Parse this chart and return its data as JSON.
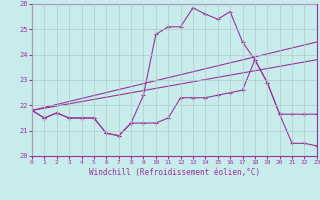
{
  "xlabel": "Windchill (Refroidissement éolien,°C)",
  "xlim": [
    0,
    23
  ],
  "ylim": [
    20,
    26
  ],
  "xticks": [
    0,
    1,
    2,
    3,
    4,
    5,
    6,
    7,
    8,
    9,
    10,
    11,
    12,
    13,
    14,
    15,
    16,
    17,
    18,
    19,
    20,
    21,
    22,
    23
  ],
  "yticks": [
    20,
    21,
    22,
    23,
    24,
    25,
    26
  ],
  "bg_color": "#c8ecec",
  "line_color": "#993399",
  "grid_color": "#b0cccc",
  "line1_x": [
    0,
    1,
    2,
    3,
    4,
    5,
    6,
    7,
    8,
    9,
    10,
    11,
    12,
    13,
    14,
    15,
    16,
    17,
    18,
    19,
    20,
    21,
    22,
    23
  ],
  "line1_y": [
    21.8,
    21.5,
    21.7,
    21.5,
    21.5,
    21.5,
    20.9,
    20.8,
    21.3,
    22.4,
    24.8,
    25.1,
    25.1,
    25.85,
    25.6,
    25.4,
    25.7,
    24.5,
    23.8,
    22.9,
    21.65,
    21.65,
    21.65,
    21.65
  ],
  "line2_x": [
    0,
    1,
    2,
    3,
    4,
    5,
    6,
    7,
    8,
    9,
    10,
    11,
    12,
    13,
    14,
    15,
    16,
    17,
    18,
    19,
    20,
    21,
    22,
    23
  ],
  "line2_y": [
    21.8,
    21.5,
    21.7,
    21.5,
    21.5,
    21.5,
    20.9,
    20.8,
    21.3,
    21.3,
    21.3,
    21.5,
    22.3,
    22.3,
    22.3,
    22.4,
    22.5,
    22.6,
    23.8,
    22.9,
    21.65,
    20.5,
    20.5,
    20.4
  ],
  "line3_x": [
    0,
    23
  ],
  "line3_y": [
    21.8,
    24.5
  ],
  "line4_x": [
    0,
    23
  ],
  "line4_y": [
    21.8,
    23.8
  ]
}
